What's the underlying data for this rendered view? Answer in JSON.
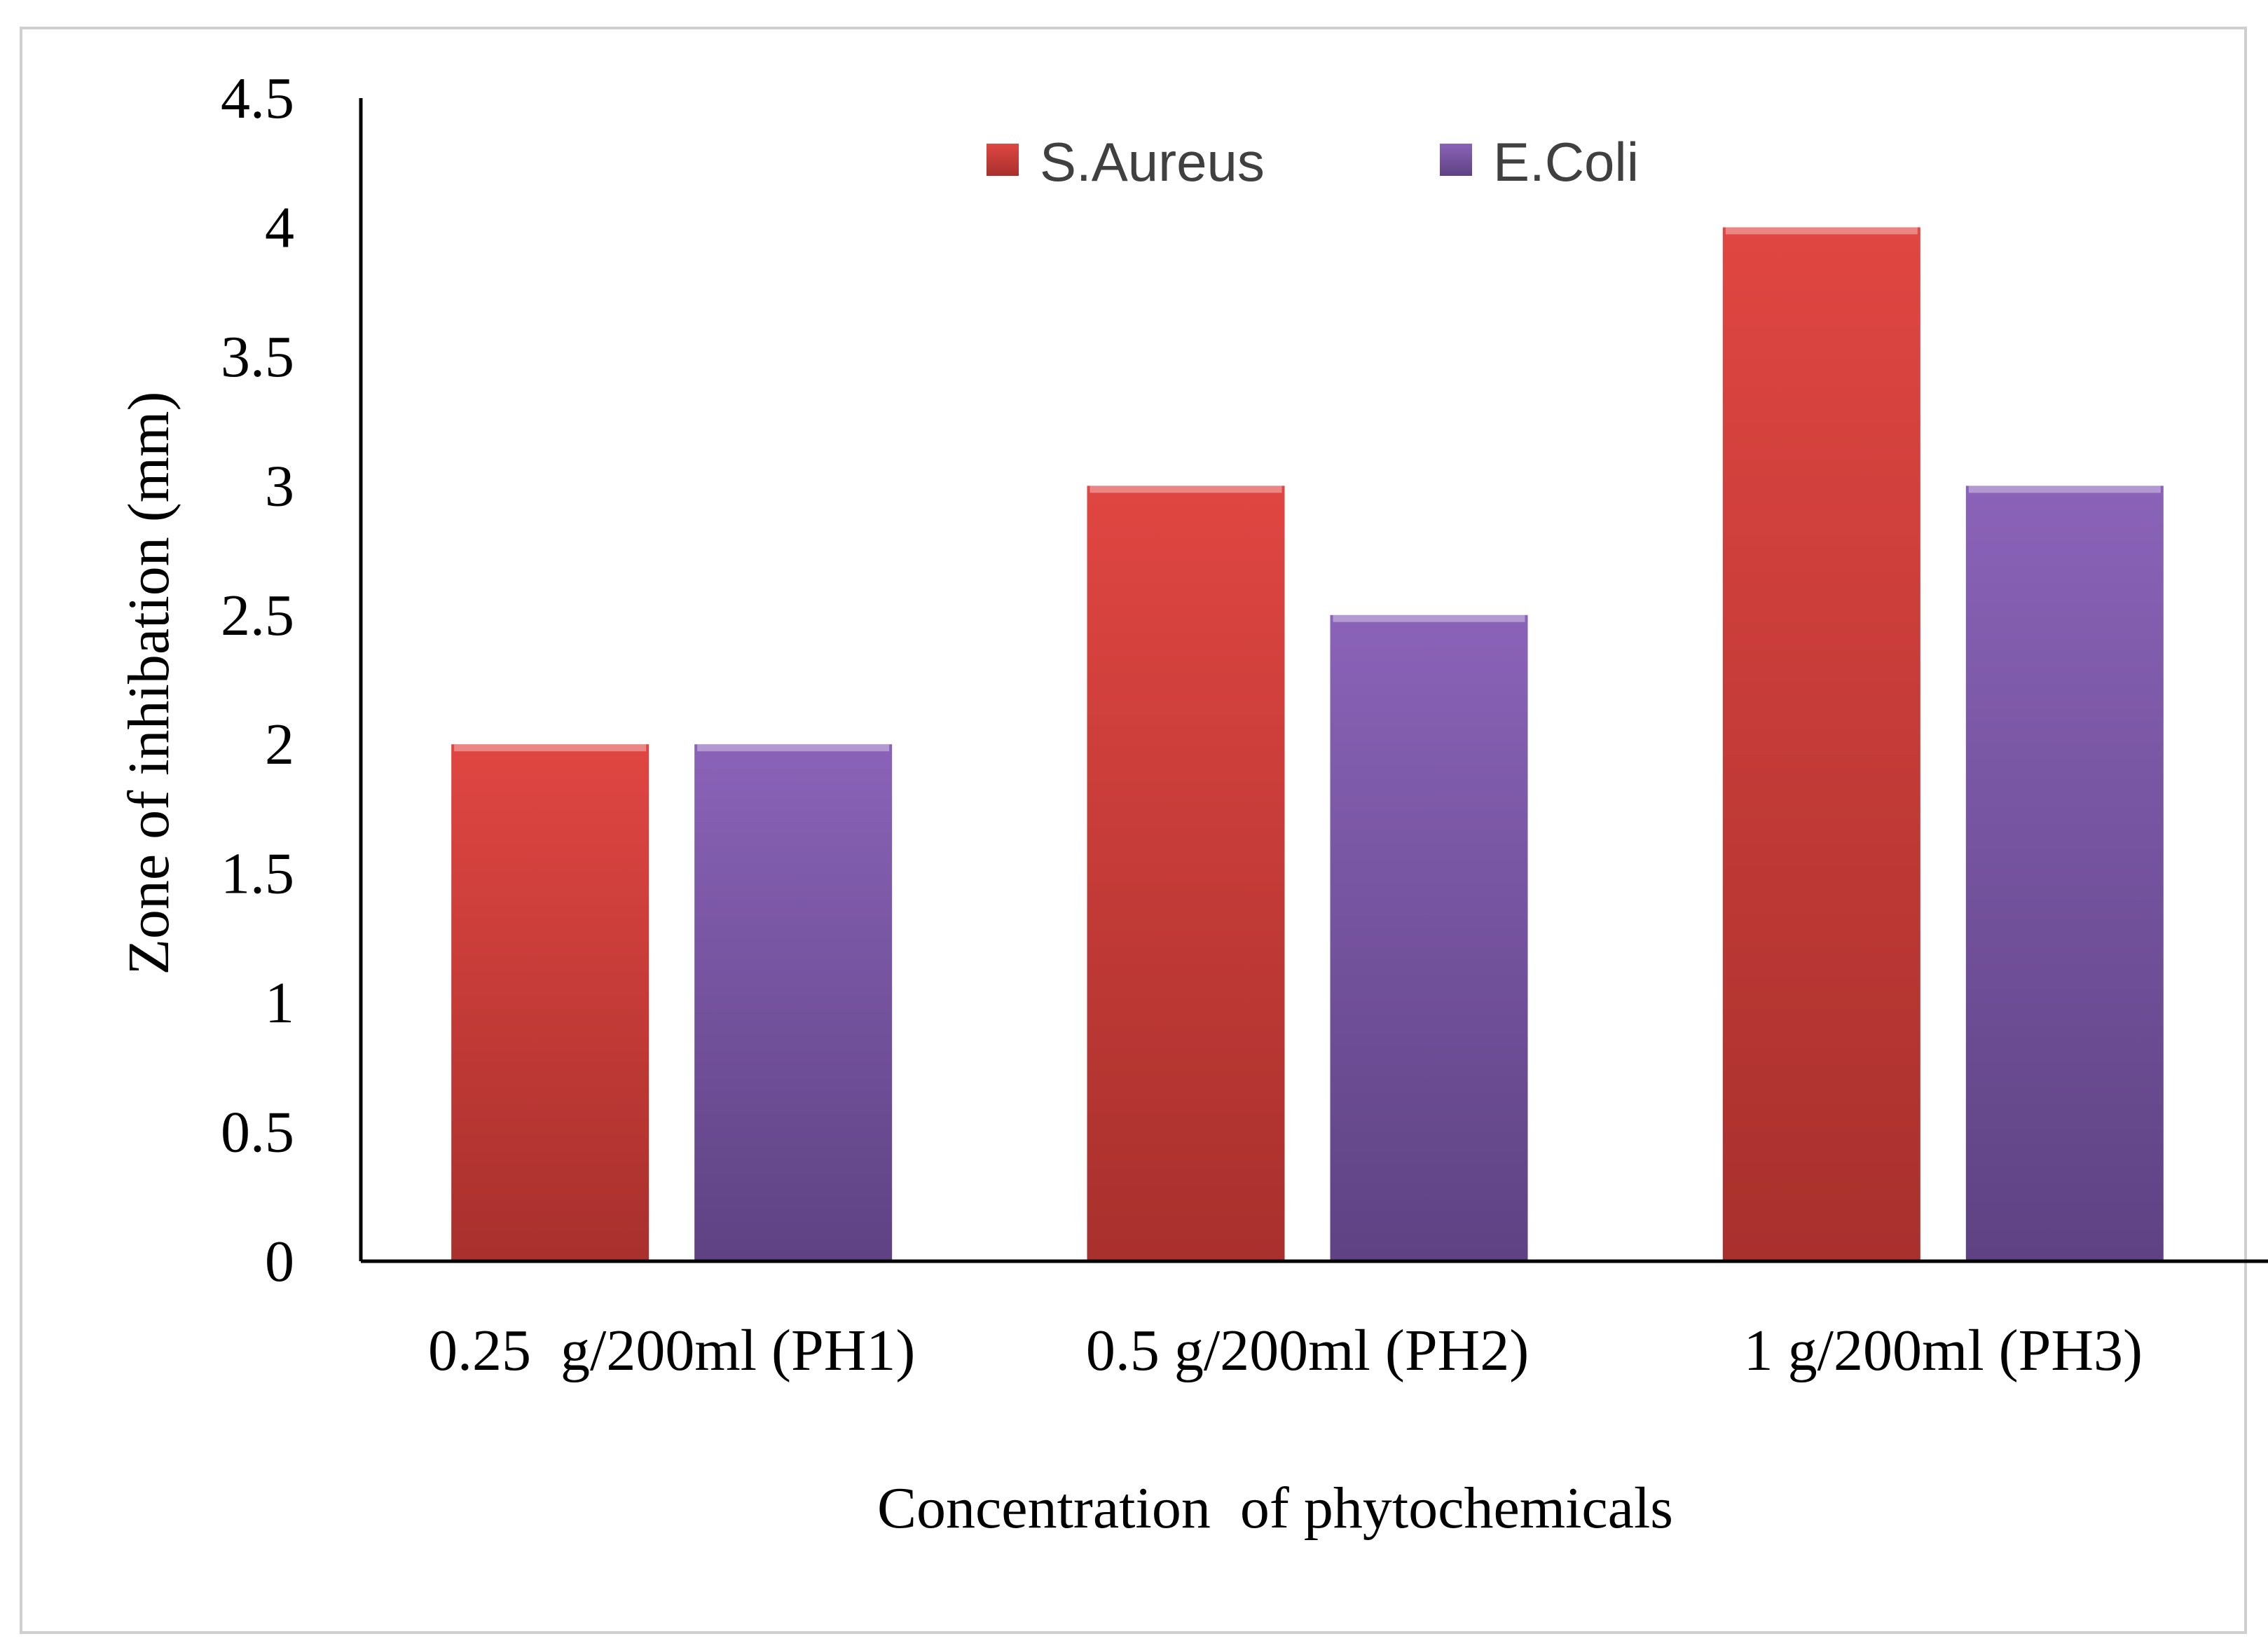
{
  "chart_data": {
    "type": "bar",
    "title": "",
    "xlabel": "Concentration  of phytochemicals",
    "ylabel": "Zone of inhibation (mm)",
    "categories": [
      "0.25  g/200ml (PH1)",
      "0.5 g/200ml (PH2)",
      "1 g/200ml (PH3)"
    ],
    "series": [
      {
        "name": "S.Aureus",
        "values": [
          2,
          3,
          4
        ],
        "color": "#d23f3b"
      },
      {
        "name": "E.Coli",
        "values": [
          2,
          2.5,
          3
        ],
        "color": "#7c57a8"
      }
    ],
    "ylim": [
      0,
      4.5
    ],
    "yticks": [
      "0",
      "0.5",
      "1",
      "1.5",
      "2",
      "2.5",
      "3",
      "3.5",
      "4",
      "4.5"
    ],
    "grid": false,
    "legend_position": "top"
  }
}
